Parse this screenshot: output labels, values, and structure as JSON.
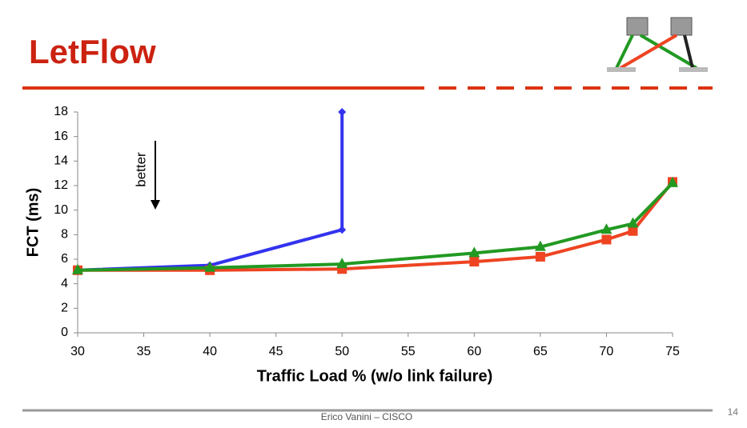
{
  "slide": {
    "title": "LetFlow",
    "footer": "Erico Vanini – CISCO",
    "page_number": "14"
  },
  "chart_data": {
    "type": "line",
    "y_label": "FCT (ms)",
    "x_label": "Traffic Load % (w/o link failure)",
    "annotation": "better",
    "xlim": [
      30,
      75
    ],
    "xticks": [
      30,
      35,
      40,
      45,
      50,
      55,
      60,
      65,
      70,
      75
    ],
    "ylim": [
      0,
      18
    ],
    "yticks": [
      0,
      2,
      4,
      6,
      8,
      10,
      12,
      14,
      16,
      18
    ],
    "series": [
      {
        "color": "#3333ee",
        "marker": "diamond",
        "x": [
          30,
          40,
          50,
          50
        ],
        "values": [
          5.1,
          5.5,
          8.4,
          18
        ]
      },
      {
        "color": "#ee4422",
        "marker": "square",
        "x": [
          30,
          40,
          50,
          60,
          65,
          70,
          72,
          75
        ],
        "values": [
          5.1,
          5.1,
          5.2,
          5.8,
          6.2,
          7.6,
          8.3,
          12.3
        ]
      },
      {
        "color": "#229922",
        "marker": "triangle",
        "x": [
          30,
          40,
          50,
          60,
          65,
          70,
          72,
          75
        ],
        "values": [
          5.1,
          5.3,
          5.6,
          6.5,
          7.0,
          8.4,
          8.9,
          12.2
        ]
      }
    ]
  }
}
